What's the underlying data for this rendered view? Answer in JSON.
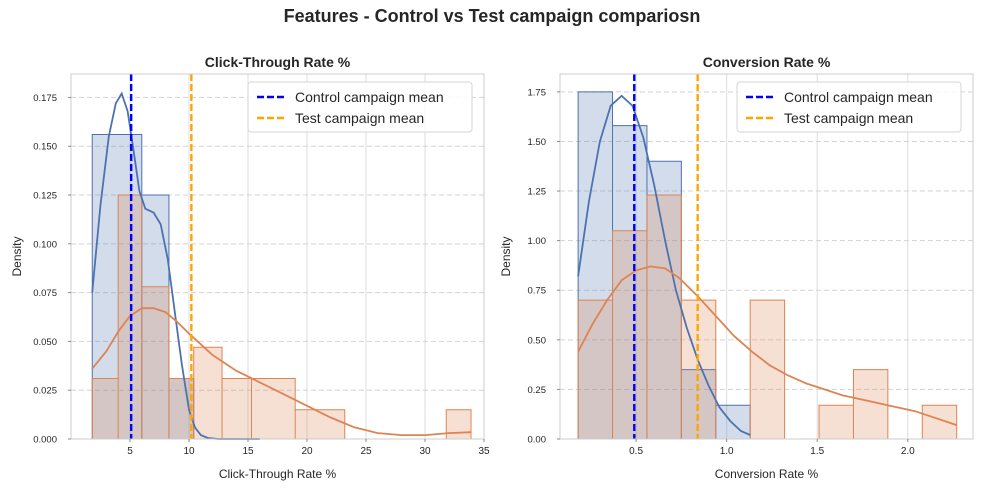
{
  "figure": {
    "title": "Features - Control vs Test campaign compariosn"
  },
  "colors": {
    "control": "#4c72b0",
    "test": "#dd8452",
    "control_mean": "#0000ff",
    "test_mean": "#ffa500"
  },
  "chart_data": [
    {
      "type": "histogram",
      "title": "Click-Through Rate %",
      "xlabel": "Click-Through Rate %",
      "ylabel": "Density",
      "xlim": [
        0.0,
        35.0
      ],
      "ylim": [
        0,
        0.187
      ],
      "xticks": [
        5,
        10,
        15,
        20,
        25,
        30,
        35
      ],
      "xtick_labels": [
        "5",
        "10",
        "15",
        "20",
        "25",
        "30",
        "35"
      ],
      "yticks": [
        0,
        0.025,
        0.05,
        0.075,
        0.1,
        0.125,
        0.15,
        0.175
      ],
      "ytick_labels": [
        "0.000",
        "0.025",
        "0.050",
        "0.075",
        "0.100",
        "0.125",
        "0.150",
        "0.175"
      ],
      "grid": true,
      "legend": {
        "position": "top-right",
        "entries": [
          "Control campaign mean",
          "Test campaign mean"
        ]
      },
      "control_mean": 5.1,
      "test_mean": 10.2,
      "control_hist": {
        "edges": [
          1.8,
          6.0,
          8.3,
          10.4
        ],
        "density": [
          0.156,
          0.125,
          0.031
        ]
      },
      "test_hist": {
        "edges": [
          1.8,
          4.0,
          6.0,
          8.3,
          10.4,
          12.8,
          15.3,
          19.0,
          23.2,
          27.5,
          31.8,
          33.9
        ],
        "density": [
          0.031,
          0.125,
          0.078,
          0.031,
          0.047,
          0.031,
          0.031,
          0.015,
          0.0,
          0.0,
          0.015
        ]
      },
      "control_kde": {
        "x": [
          1.8,
          2.5,
          3.2,
          3.8,
          4.3,
          4.8,
          5.3,
          5.8,
          6.3,
          7.0,
          7.6,
          8.2,
          8.8,
          9.4,
          10.0,
          10.5,
          11.0,
          11.6,
          12.5,
          14.0,
          16.0
        ],
        "y": [
          0.075,
          0.12,
          0.155,
          0.172,
          0.177,
          0.168,
          0.148,
          0.127,
          0.118,
          0.116,
          0.11,
          0.092,
          0.065,
          0.038,
          0.015,
          0.006,
          0.002,
          0.0005,
          0.0,
          0.0,
          0.0
        ]
      },
      "test_kde": {
        "x": [
          1.8,
          3.0,
          4.0,
          5.0,
          6.0,
          7.0,
          8.0,
          9.0,
          10.0,
          12.0,
          14.0,
          16.0,
          18.0,
          20.0,
          22.0,
          24.0,
          26.0,
          28.0,
          30.0,
          32.0,
          33.9
        ],
        "y": [
          0.036,
          0.045,
          0.055,
          0.063,
          0.067,
          0.067,
          0.065,
          0.06,
          0.054,
          0.043,
          0.035,
          0.029,
          0.023,
          0.017,
          0.011,
          0.006,
          0.003,
          0.002,
          0.002,
          0.003,
          0.0035
        ]
      }
    },
    {
      "type": "histogram",
      "title": "Conversion Rate %",
      "xlabel": "Conversion Rate %",
      "ylabel": "Density",
      "xlim": [
        0.08,
        2.36
      ],
      "ylim": [
        0,
        1.84
      ],
      "xticks": [
        0.5,
        1.0,
        1.5,
        2.0
      ],
      "xtick_labels": [
        "0.5",
        "1.0",
        "1.5",
        "2.0"
      ],
      "yticks": [
        0,
        0.25,
        0.5,
        0.75,
        1.0,
        1.25,
        1.5,
        1.75
      ],
      "ytick_labels": [
        "0.00",
        "0.25",
        "0.50",
        "0.75",
        "1.00",
        "1.25",
        "1.50",
        "1.75"
      ],
      "grid": true,
      "legend": {
        "position": "top-right",
        "entries": [
          "Control campaign mean",
          "Test campaign mean"
        ]
      },
      "control_mean": 0.49,
      "test_mean": 0.84,
      "control_hist": {
        "edges": [
          0.18,
          0.37,
          0.56,
          0.75,
          0.94,
          1.13
        ],
        "density": [
          1.75,
          1.58,
          1.4,
          0.35,
          0.17
        ]
      },
      "test_hist": {
        "edges": [
          0.18,
          0.37,
          0.56,
          0.75,
          0.94,
          1.13,
          1.32,
          1.51,
          1.7,
          1.89,
          2.08,
          2.27
        ],
        "density": [
          0.7,
          1.05,
          1.23,
          0.7,
          0.0,
          0.7,
          0.0,
          0.17,
          0.35,
          0.0,
          0.17
        ]
      },
      "control_kde": {
        "x": [
          0.18,
          0.24,
          0.3,
          0.36,
          0.42,
          0.48,
          0.54,
          0.6,
          0.66,
          0.72,
          0.78,
          0.84,
          0.9,
          0.96,
          1.02,
          1.08,
          1.13
        ],
        "y": [
          0.82,
          1.2,
          1.5,
          1.68,
          1.73,
          1.68,
          1.52,
          1.28,
          1.0,
          0.75,
          0.56,
          0.4,
          0.27,
          0.16,
          0.09,
          0.04,
          0.02
        ]
      },
      "test_kde": {
        "x": [
          0.18,
          0.26,
          0.34,
          0.42,
          0.5,
          0.58,
          0.66,
          0.74,
          0.84,
          0.94,
          1.04,
          1.14,
          1.24,
          1.34,
          1.44,
          1.54,
          1.64,
          1.74,
          1.84,
          1.94,
          2.04,
          2.14,
          2.27
        ],
        "y": [
          0.44,
          0.58,
          0.7,
          0.8,
          0.85,
          0.87,
          0.86,
          0.81,
          0.72,
          0.62,
          0.52,
          0.44,
          0.37,
          0.32,
          0.28,
          0.25,
          0.22,
          0.2,
          0.18,
          0.16,
          0.14,
          0.11,
          0.07
        ]
      }
    }
  ]
}
